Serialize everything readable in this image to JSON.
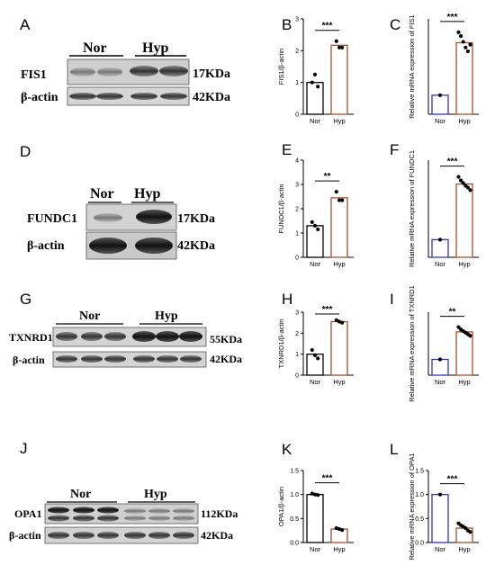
{
  "panel_letters": [
    "A",
    "B",
    "C",
    "D",
    "E",
    "F",
    "G",
    "H",
    "I",
    "J",
    "K",
    "L"
  ],
  "blots": [
    {
      "letter": "A",
      "groups": [
        "Nor",
        "Hyp"
      ],
      "proteins": [
        {
          "name": "FIS1",
          "size": "17KDa"
        },
        {
          "name": "β-actin",
          "size": "42KDa"
        }
      ]
    },
    {
      "letter": "D",
      "groups": [
        "Nor",
        "Hyp"
      ],
      "proteins": [
        {
          "name": "FUNDC1",
          "size": "17KDa"
        },
        {
          "name": "β-actin",
          "size": "42KDa"
        }
      ]
    },
    {
      "letter": "G",
      "groups": [
        "Nor",
        "Hyp"
      ],
      "proteins": [
        {
          "name": "TXNRD1",
          "size": "55KDa"
        },
        {
          "name": "β-actin",
          "size": "42KDa"
        }
      ]
    },
    {
      "letter": "J",
      "groups": [
        "Nor",
        "Hyp"
      ],
      "proteins": [
        {
          "name": "OPA1",
          "size": "112KDa"
        },
        {
          "name": "β-actin",
          "size": "42KDa"
        }
      ]
    }
  ],
  "colors": {
    "nor_bar": "#000000",
    "hyp_bar": "#a0522d",
    "mrna_nor_bar": "#3333cc",
    "points": "#000000"
  },
  "chart_data": [
    {
      "letter": "B",
      "type": "bar",
      "categories": [
        "Nor",
        "Hyp"
      ],
      "values": [
        1.0,
        2.17
      ],
      "points": [
        [
          1.0,
          1.25,
          0.87
        ],
        [
          2.3,
          2.1,
          2.1
        ]
      ],
      "ylabel": "FIS1/β-actin",
      "ylim": [
        0,
        3
      ],
      "yticks": [
        "0",
        "1",
        "2",
        "3"
      ],
      "significance": "***"
    },
    {
      "letter": "C",
      "type": "bar",
      "categories": [
        "Nor",
        "Hyp"
      ],
      "values": [
        1.0,
        3.75
      ],
      "points": [
        [
          1.0
        ],
        [
          4.3,
          4.1,
          3.8,
          3.5,
          3.3,
          3.65
        ]
      ],
      "ylabel": "Relative mRNA expression of FIS1",
      "ylim": [
        0,
        5
      ],
      "yticks": [],
      "significance": "***"
    },
    {
      "letter": "E",
      "type": "bar",
      "categories": [
        "Nor",
        "Hyp"
      ],
      "values": [
        1.3,
        2.45
      ],
      "points": [
        [
          1.45,
          1.3,
          1.15
        ],
        [
          2.7,
          2.35,
          2.35
        ]
      ],
      "ylabel": "FUNDC1/β-actin",
      "ylim": [
        0,
        4
      ],
      "yticks": [
        "0",
        "1",
        "2",
        "3",
        "4"
      ],
      "significance": "**"
    },
    {
      "letter": "F",
      "type": "bar",
      "categories": [
        "Nor",
        "Hyp"
      ],
      "values": [
        1.0,
        4.15
      ],
      "points": [
        [
          1.0
        ],
        [
          4.55,
          4.35,
          4.2,
          4.05,
          3.95,
          3.8
        ]
      ],
      "ylabel": "Relative mRNA expression of FUNDC1",
      "ylim": [
        0,
        5.5
      ],
      "yticks": [],
      "significance": "***"
    },
    {
      "letter": "H",
      "type": "bar",
      "categories": [
        "Nor",
        "Hyp"
      ],
      "values": [
        1.0,
        2.55
      ],
      "points": [
        [
          1.2,
          0.95,
          0.8
        ],
        [
          2.62,
          2.55,
          2.5
        ]
      ],
      "ylabel": "TXNRD1/β-actin",
      "ylim": [
        0,
        3
      ],
      "yticks": [
        "0",
        "1",
        "2",
        "3"
      ],
      "significance": "***"
    },
    {
      "letter": "I",
      "type": "bar",
      "categories": [
        "Nor",
        "Hyp"
      ],
      "values": [
        1.0,
        2.75
      ],
      "points": [
        [
          1.0
        ],
        [
          3.05,
          2.9,
          2.8,
          2.7,
          2.6,
          2.5
        ]
      ],
      "ylabel": "Relative mRNA expression of TXNRD1",
      "ylim": [
        0,
        4
      ],
      "yticks": [],
      "significance": "**"
    },
    {
      "letter": "K",
      "type": "bar",
      "categories": [
        "Nor",
        "Hyp"
      ],
      "values": [
        1.0,
        0.28
      ],
      "points": [
        [
          1.02,
          1.0,
          0.99
        ],
        [
          0.3,
          0.28,
          0.26
        ]
      ],
      "ylabel": "OPA1/β-actin",
      "ylim": [
        0,
        1.5
      ],
      "yticks": [
        "0.0",
        "0.5",
        "1.0",
        "1.5"
      ],
      "significance": "***"
    },
    {
      "letter": "L",
      "type": "bar",
      "categories": [
        "Nor",
        "Hyp"
      ],
      "values": [
        1.0,
        0.3
      ],
      "points": [
        [
          1.0
        ],
        [
          0.4,
          0.36,
          0.33,
          0.3,
          0.25,
          0.22
        ]
      ],
      "ylabel": "Relative mRNA expression of OPA1",
      "ylim": [
        0,
        1.5
      ],
      "yticks": [
        "0.0",
        "0.5",
        "1.0",
        "1.5"
      ],
      "significance": "***"
    }
  ]
}
